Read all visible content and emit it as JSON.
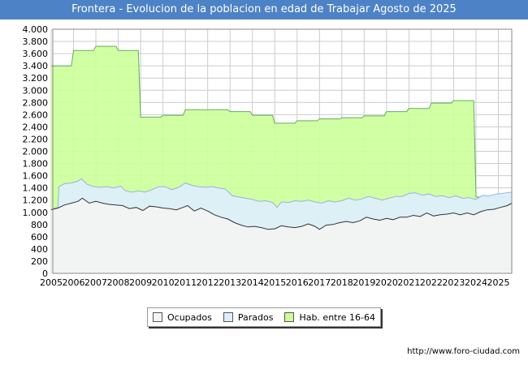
{
  "chart_data": {
    "type": "area",
    "title": "Frontera - Evolucion de la poblacion en edad de Trabajar Agosto de 2025",
    "xlabel": "",
    "ylabel": "",
    "ylim": [
      0,
      4000
    ],
    "yticks": [
      0,
      200,
      400,
      600,
      800,
      1000,
      1200,
      1400,
      1600,
      1800,
      2000,
      2200,
      2400,
      2600,
      2800,
      3000,
      3200,
      3400,
      3600,
      3800,
      4000
    ],
    "ytick_labels": [
      "0",
      "200",
      "400",
      "600",
      "800",
      "1.000",
      "1.200",
      "1.400",
      "1.600",
      "1.800",
      "2.000",
      "2.200",
      "2.400",
      "2.600",
      "2.800",
      "3.000",
      "3.200",
      "3.400",
      "3.600",
      "3.800",
      "4.000"
    ],
    "xlim": [
      2005,
      2025.6
    ],
    "xticks": [
      2005,
      2006,
      2007,
      2008,
      2009,
      2010,
      2011,
      2012,
      2013,
      2014,
      2015,
      2016,
      2017,
      2018,
      2019,
      2020,
      2021,
      2022,
      2023,
      2024,
      2025
    ],
    "xtick_labels": [
      "2005",
      "2006",
      "2007",
      "2008",
      "2009",
      "2010",
      "2011",
      "2012",
      "2013",
      "2014",
      "2015",
      "2016",
      "2017",
      "2018",
      "2019",
      "2020",
      "2021",
      "2022",
      "2023",
      "2024",
      "2025"
    ],
    "grid": true,
    "legend_position": "bottom",
    "series": [
      {
        "name": "Hab. entre 16-64",
        "color": "#ccff99",
        "points": [
          [
            2005,
            3400
          ],
          [
            2005.9,
            3400
          ],
          [
            2006,
            3650
          ],
          [
            2006.9,
            3650
          ],
          [
            2007,
            3720
          ],
          [
            2007.9,
            3720
          ],
          [
            2008,
            3650
          ],
          [
            2008.9,
            3650
          ],
          [
            2009,
            2560
          ],
          [
            2009.9,
            2560
          ],
          [
            2010,
            2590
          ],
          [
            2010.9,
            2590
          ],
          [
            2011,
            2680
          ],
          [
            2012.9,
            2680
          ],
          [
            2013,
            2650
          ],
          [
            2013.9,
            2650
          ],
          [
            2014,
            2590
          ],
          [
            2014.9,
            2590
          ],
          [
            2015,
            2460
          ],
          [
            2015.9,
            2460
          ],
          [
            2016,
            2500
          ],
          [
            2016.9,
            2500
          ],
          [
            2017,
            2530
          ],
          [
            2017.9,
            2530
          ],
          [
            2018,
            2550
          ],
          [
            2018.9,
            2550
          ],
          [
            2019,
            2580
          ],
          [
            2019.9,
            2580
          ],
          [
            2020,
            2650
          ],
          [
            2020.9,
            2650
          ],
          [
            2021,
            2700
          ],
          [
            2021.9,
            2700
          ],
          [
            2022,
            2790
          ],
          [
            2022.9,
            2790
          ],
          [
            2023,
            2830
          ],
          [
            2023.9,
            2830
          ],
          [
            2024,
            1250
          ],
          [
            2025.6,
            1250
          ]
        ]
      },
      {
        "name": "Parados",
        "color": "#ddeeff",
        "points": [
          [
            2005,
            1050
          ],
          [
            2005.3,
            1080
          ],
          [
            2005.35,
            1420
          ],
          [
            2005.6,
            1470
          ],
          [
            2005.9,
            1480
          ],
          [
            2006.2,
            1510
          ],
          [
            2006.35,
            1550
          ],
          [
            2006.6,
            1460
          ],
          [
            2006.9,
            1420
          ],
          [
            2007.2,
            1410
          ],
          [
            2007.5,
            1420
          ],
          [
            2007.8,
            1400
          ],
          [
            2008.1,
            1430
          ],
          [
            2008.3,
            1360
          ],
          [
            2008.6,
            1330
          ],
          [
            2008.9,
            1350
          ],
          [
            2009.2,
            1330
          ],
          [
            2009.5,
            1370
          ],
          [
            2009.8,
            1420
          ],
          [
            2010.1,
            1420
          ],
          [
            2010.4,
            1370
          ],
          [
            2010.7,
            1410
          ],
          [
            2011,
            1480
          ],
          [
            2011.3,
            1440
          ],
          [
            2011.6,
            1420
          ],
          [
            2011.9,
            1410
          ],
          [
            2012.2,
            1420
          ],
          [
            2012.5,
            1400
          ],
          [
            2012.8,
            1380
          ],
          [
            2013.1,
            1270
          ],
          [
            2013.4,
            1250
          ],
          [
            2013.7,
            1230
          ],
          [
            2014,
            1210
          ],
          [
            2014.3,
            1180
          ],
          [
            2014.6,
            1190
          ],
          [
            2014.9,
            1160
          ],
          [
            2015.1,
            1080
          ],
          [
            2015.3,
            1170
          ],
          [
            2015.6,
            1160
          ],
          [
            2015.9,
            1190
          ],
          [
            2016.2,
            1180
          ],
          [
            2016.5,
            1200
          ],
          [
            2016.8,
            1170
          ],
          [
            2017.1,
            1150
          ],
          [
            2017.4,
            1190
          ],
          [
            2017.7,
            1170
          ],
          [
            2018,
            1190
          ],
          [
            2018.3,
            1230
          ],
          [
            2018.6,
            1200
          ],
          [
            2018.9,
            1220
          ],
          [
            2019.2,
            1260
          ],
          [
            2019.5,
            1230
          ],
          [
            2019.8,
            1200
          ],
          [
            2020.1,
            1230
          ],
          [
            2020.4,
            1260
          ],
          [
            2020.7,
            1260
          ],
          [
            2021,
            1310
          ],
          [
            2021.3,
            1320
          ],
          [
            2021.6,
            1280
          ],
          [
            2021.9,
            1300
          ],
          [
            2022.2,
            1260
          ],
          [
            2022.5,
            1270
          ],
          [
            2022.8,
            1240
          ],
          [
            2023.1,
            1270
          ],
          [
            2023.4,
            1230
          ],
          [
            2023.7,
            1240
          ],
          [
            2024,
            1210
          ],
          [
            2024.3,
            1280
          ],
          [
            2024.6,
            1270
          ],
          [
            2024.9,
            1300
          ],
          [
            2025.2,
            1310
          ],
          [
            2025.6,
            1330
          ]
        ]
      },
      {
        "name": "Ocupados",
        "color": "#f4f4f4",
        "points": [
          [
            2005,
            1040
          ],
          [
            2005.3,
            1070
          ],
          [
            2005.6,
            1120
          ],
          [
            2005.9,
            1150
          ],
          [
            2006.2,
            1180
          ],
          [
            2006.4,
            1230
          ],
          [
            2006.7,
            1150
          ],
          [
            2007,
            1180
          ],
          [
            2007.3,
            1150
          ],
          [
            2007.6,
            1130
          ],
          [
            2007.9,
            1120
          ],
          [
            2008.2,
            1110
          ],
          [
            2008.5,
            1060
          ],
          [
            2008.8,
            1080
          ],
          [
            2009.1,
            1030
          ],
          [
            2009.4,
            1100
          ],
          [
            2009.7,
            1090
          ],
          [
            2010,
            1070
          ],
          [
            2010.3,
            1060
          ],
          [
            2010.6,
            1040
          ],
          [
            2010.9,
            1080
          ],
          [
            2011.1,
            1110
          ],
          [
            2011.4,
            1020
          ],
          [
            2011.7,
            1070
          ],
          [
            2012,
            1020
          ],
          [
            2012.3,
            960
          ],
          [
            2012.6,
            920
          ],
          [
            2012.9,
            890
          ],
          [
            2013.2,
            830
          ],
          [
            2013.5,
            790
          ],
          [
            2013.8,
            760
          ],
          [
            2014.1,
            770
          ],
          [
            2014.4,
            750
          ],
          [
            2014.7,
            720
          ],
          [
            2015,
            730
          ],
          [
            2015.3,
            780
          ],
          [
            2015.6,
            760
          ],
          [
            2015.9,
            750
          ],
          [
            2016.2,
            770
          ],
          [
            2016.5,
            810
          ],
          [
            2016.8,
            770
          ],
          [
            2017,
            720
          ],
          [
            2017.3,
            790
          ],
          [
            2017.6,
            800
          ],
          [
            2017.9,
            830
          ],
          [
            2018.2,
            850
          ],
          [
            2018.5,
            830
          ],
          [
            2018.8,
            860
          ],
          [
            2019.1,
            920
          ],
          [
            2019.4,
            890
          ],
          [
            2019.7,
            870
          ],
          [
            2020,
            900
          ],
          [
            2020.3,
            880
          ],
          [
            2020.6,
            920
          ],
          [
            2020.9,
            920
          ],
          [
            2021.2,
            950
          ],
          [
            2021.5,
            930
          ],
          [
            2021.8,
            990
          ],
          [
            2022.1,
            940
          ],
          [
            2022.4,
            960
          ],
          [
            2022.7,
            970
          ],
          [
            2023,
            990
          ],
          [
            2023.3,
            960
          ],
          [
            2023.6,
            990
          ],
          [
            2023.9,
            960
          ],
          [
            2024.2,
            1010
          ],
          [
            2024.5,
            1040
          ],
          [
            2024.8,
            1050
          ],
          [
            2025.1,
            1080
          ],
          [
            2025.4,
            1110
          ],
          [
            2025.6,
            1150
          ]
        ]
      }
    ]
  },
  "legend": [
    {
      "label": "Ocupados",
      "color": "#f4f4f4"
    },
    {
      "label": "Parados",
      "color": "#ddeeff"
    },
    {
      "label": "Hab. entre 16-64",
      "color": "#ccff99"
    }
  ],
  "source": "http://www.foro-ciudad.com"
}
